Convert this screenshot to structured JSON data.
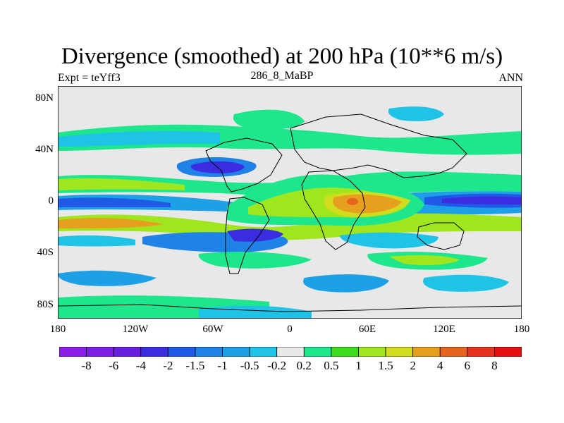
{
  "title": "Divergence (smoothed) at 200 hPa (10**6 m/s)",
  "left_label": "Expt = teYff3",
  "center_label": "286_8_MaBP",
  "right_label": "ANN",
  "y_ticks": [
    "80N",
    "40N",
    "0",
    "40S",
    "80S"
  ],
  "x_ticks": [
    "180",
    "120W",
    "60W",
    "0",
    "60E",
    "120E",
    "180"
  ],
  "colorbar": {
    "labels": [
      "-8",
      "-6",
      "-4",
      "-2",
      "-1.5",
      "-1",
      "-0.5",
      "-0.2",
      "0.2",
      "0.5",
      "1",
      "1.5",
      "2",
      "4",
      "6",
      "8"
    ],
    "colors": [
      "#8a1ee6",
      "#7a1ee6",
      "#6a1ee0",
      "#3a2de0",
      "#1e5ae6",
      "#1e82e6",
      "#1ea0e6",
      "#1ec3e6",
      "#e8e8e8",
      "#1ee68c",
      "#3cdc1e",
      "#a0e61e",
      "#d2dc1e",
      "#e6a01e",
      "#e6641e",
      "#e6321e",
      "#e60f0f"
    ]
  },
  "colors": {
    "background": "#e8e8e8",
    "coast": "#000000"
  }
}
